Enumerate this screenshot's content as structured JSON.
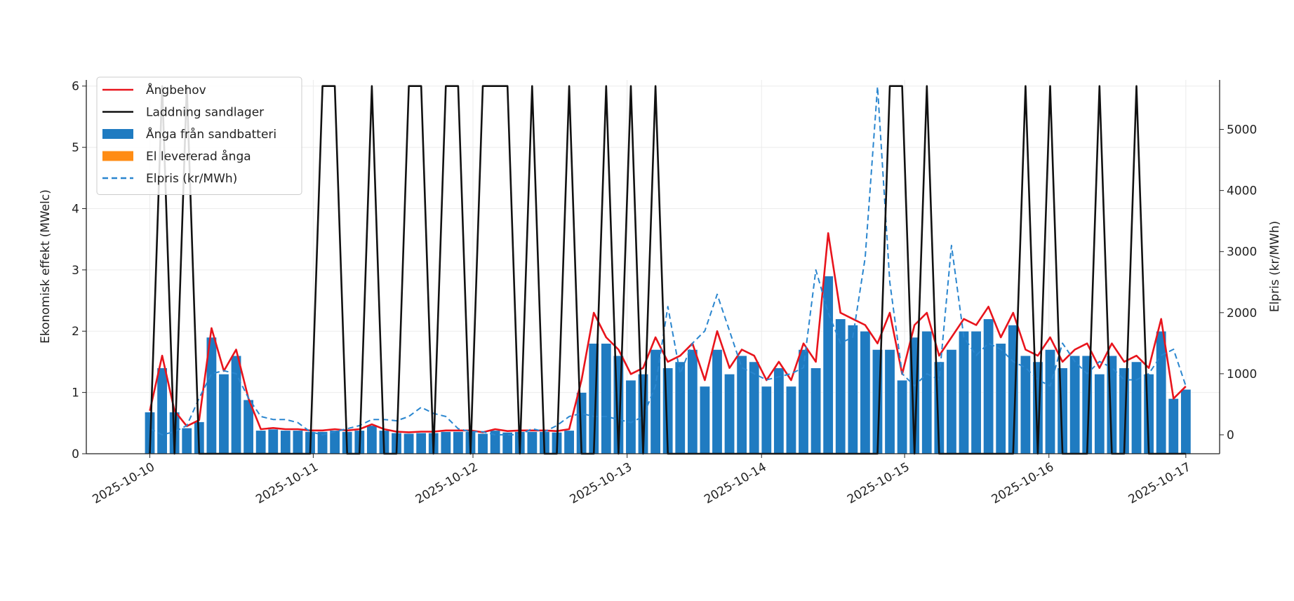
{
  "chart_data": {
    "type": "bar_line",
    "ylabel": "Ekonomisk effekt (MWelc)",
    "y2label": "Elpris (kr/MWh)",
    "x": [
      0,
      1,
      2,
      3,
      4,
      5,
      6,
      7,
      8,
      9,
      10,
      11,
      12,
      13,
      14,
      15,
      16,
      17,
      18,
      19,
      20,
      21,
      22,
      23,
      24,
      25,
      26,
      27,
      28,
      29,
      30,
      31,
      32,
      33,
      34,
      35,
      36,
      37,
      38,
      39,
      40,
      41,
      42,
      43,
      44,
      45,
      46,
      47,
      48,
      49,
      50,
      51,
      52,
      53,
      54,
      55,
      56,
      57,
      58,
      59,
      60,
      61,
      62,
      63,
      64,
      65,
      66,
      67,
      68,
      69,
      70,
      71,
      72,
      73,
      74,
      75,
      76,
      77,
      78,
      79,
      80,
      81,
      82,
      83,
      84
    ],
    "xlim": [
      -5.15,
      86.74
    ],
    "xticks": [
      {
        "value": 0,
        "label": "2025-10-10"
      },
      {
        "value": 13.25,
        "label": "2025-10-11"
      },
      {
        "value": 26.2,
        "label": "2025-10-12"
      },
      {
        "value": 38.7,
        "label": "2025-10-13"
      },
      {
        "value": 49.6,
        "label": "2025-10-14"
      },
      {
        "value": 61.2,
        "label": "2025-10-15"
      },
      {
        "value": 72.9,
        "label": "2025-10-16"
      },
      {
        "value": 84,
        "label": "2025-10-17"
      }
    ],
    "ylim": [
      0,
      6.1
    ],
    "yticks": [
      0,
      1,
      2,
      3,
      4,
      5,
      6
    ],
    "y2lim": [
      -310,
      5810
    ],
    "y2ticks": [
      0,
      1000,
      2000,
      3000,
      4000,
      5000
    ],
    "grid": true,
    "legend": "upper left",
    "series": [
      {
        "name": "Ångbehov",
        "kind": "line",
        "color": "#e8141c",
        "values": [
          0.7,
          1.6,
          0.7,
          0.45,
          0.55,
          2.05,
          1.35,
          1.7,
          0.9,
          0.4,
          0.42,
          0.4,
          0.4,
          0.38,
          0.38,
          0.4,
          0.38,
          0.4,
          0.48,
          0.4,
          0.36,
          0.35,
          0.36,
          0.36,
          0.38,
          0.38,
          0.38,
          0.35,
          0.4,
          0.37,
          0.38,
          0.38,
          0.38,
          0.37,
          0.4,
          1.2,
          2.3,
          1.9,
          1.7,
          1.3,
          1.4,
          1.9,
          1.5,
          1.6,
          1.8,
          1.2,
          2.0,
          1.4,
          1.7,
          1.6,
          1.2,
          1.5,
          1.2,
          1.8,
          1.5,
          3.6,
          2.3,
          2.2,
          2.1,
          1.8,
          2.3,
          1.3,
          2.1,
          2.3,
          1.6,
          1.9,
          2.2,
          2.1,
          2.4,
          1.9,
          2.3,
          1.7,
          1.6,
          1.9,
          1.5,
          1.7,
          1.8,
          1.4,
          1.8,
          1.5,
          1.6,
          1.4,
          2.2,
          0.9,
          1.1
        ]
      },
      {
        "name": "Laddning sandlager",
        "kind": "line",
        "color": "#111111",
        "values": [
          0,
          6,
          0,
          6,
          0,
          0,
          0,
          0,
          0,
          0,
          0,
          0,
          0,
          0,
          6,
          6,
          0,
          0,
          6,
          0,
          0,
          6,
          6,
          0,
          6,
          6,
          0,
          6,
          6,
          6,
          0,
          6,
          0,
          0,
          6,
          0,
          0,
          6,
          0,
          6,
          0,
          6,
          0,
          0,
          0,
          0,
          0,
          0,
          0,
          0,
          0,
          0,
          0,
          0,
          0,
          0,
          0,
          0,
          0,
          0,
          6,
          6,
          0,
          6,
          0,
          0,
          0,
          0,
          0,
          0,
          0,
          6,
          0,
          6,
          0,
          0,
          0,
          6,
          0,
          0,
          6,
          0,
          0,
          0,
          0
        ]
      },
      {
        "name": "Ånga från sandbatteri",
        "kind": "bar",
        "color": "#1f7bc1",
        "values": [
          0.68,
          1.4,
          0.68,
          0.42,
          0.52,
          1.9,
          1.3,
          1.6,
          0.88,
          0.38,
          0.4,
          0.38,
          0.38,
          0.36,
          0.36,
          0.38,
          0.36,
          0.38,
          0.46,
          0.38,
          0.34,
          0.33,
          0.34,
          0.34,
          0.36,
          0.36,
          0.36,
          0.33,
          0.38,
          0.35,
          0.36,
          0.36,
          0.36,
          0.35,
          0.38,
          1.0,
          1.8,
          1.8,
          1.6,
          1.2,
          1.3,
          1.7,
          1.4,
          1.5,
          1.7,
          1.1,
          1.7,
          1.3,
          1.6,
          1.5,
          1.1,
          1.4,
          1.1,
          1.7,
          1.4,
          2.9,
          2.2,
          2.1,
          2.0,
          1.7,
          1.7,
          1.2,
          1.9,
          2.0,
          1.5,
          1.7,
          2.0,
          2.0,
          2.2,
          1.8,
          2.1,
          1.6,
          1.5,
          1.7,
          1.4,
          1.6,
          1.6,
          1.3,
          1.6,
          1.4,
          1.5,
          1.3,
          2.0,
          0.9,
          1.05
        ]
      },
      {
        "name": "El levererad ånga",
        "kind": "bar",
        "color": "#ff8c14",
        "values": [
          0,
          0,
          0,
          0,
          0,
          0,
          0,
          0,
          0,
          0,
          0,
          0,
          0,
          0,
          0,
          0,
          0,
          0,
          0,
          0,
          0,
          0,
          0,
          0,
          0,
          0,
          0,
          0,
          0,
          0,
          0,
          0,
          0,
          0,
          0,
          0,
          0,
          0,
          0,
          0,
          0,
          0,
          0,
          0,
          0,
          0,
          0,
          0,
          0,
          0,
          0,
          0,
          0,
          0,
          0,
          0,
          0,
          0,
          0,
          0,
          0,
          0,
          0,
          0,
          0,
          0,
          0,
          0,
          0,
          0,
          0,
          0,
          0,
          0,
          0,
          0,
          0,
          0,
          0,
          0,
          0,
          0,
          0,
          0,
          0
        ]
      },
      {
        "name": "Elpris (kr/MWh)",
        "kind": "line",
        "dash": true,
        "axis": "y2",
        "color": "#2a86cf",
        "values": [
          100,
          0,
          50,
          150,
          600,
          1000,
          1050,
          1000,
          600,
          300,
          250,
          250,
          200,
          50,
          0,
          50,
          100,
          150,
          250,
          250,
          230,
          300,
          450,
          350,
          300,
          100,
          50,
          50,
          0,
          0,
          0,
          100,
          50,
          150,
          300,
          350,
          300,
          300,
          250,
          200,
          300,
          800,
          2100,
          1000,
          1500,
          1700,
          2300,
          1700,
          1100,
          1000,
          900,
          950,
          1000,
          1100,
          2700,
          2000,
          1500,
          1600,
          2900,
          5700,
          2500,
          1000,
          800,
          1000,
          900,
          3100,
          1600,
          1300,
          1500,
          1400,
          1200,
          1100,
          900,
          800,
          1500,
          1200,
          1000,
          1200,
          1100,
          900,
          900,
          1000,
          1300,
          1400,
          800
        ]
      }
    ]
  }
}
